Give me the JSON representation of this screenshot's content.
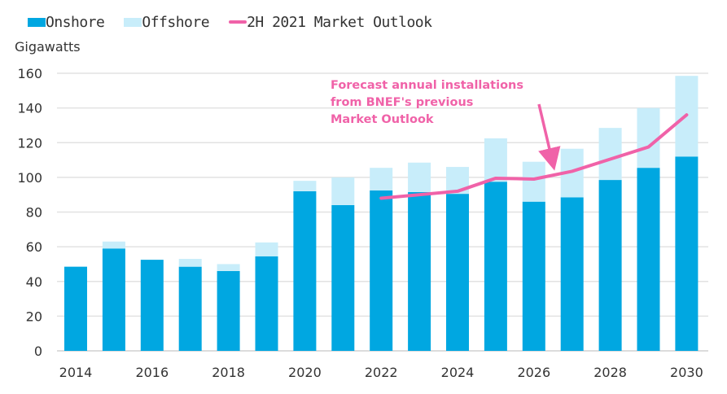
{
  "chart_data": {
    "type": "bar",
    "stacked": true,
    "title": "",
    "ylabel": "Gigawatts",
    "xlabel": "",
    "ylim": [
      0,
      160
    ],
    "yticks": [
      "0",
      "20",
      "40",
      "60",
      "80",
      "100",
      "120",
      "140",
      "160"
    ],
    "ytick_values": [
      0,
      20,
      40,
      60,
      80,
      100,
      120,
      140,
      160
    ],
    "grid": true,
    "legend_position": "top-left",
    "categories": [
      "2014",
      "2015",
      "2016",
      "2017",
      "2018",
      "2019",
      "2020",
      "2021",
      "2022",
      "2023",
      "2024",
      "2025",
      "2026",
      "2027",
      "2028",
      "2029",
      "2030"
    ],
    "xtick_labels": [
      "2014",
      "",
      "2016",
      "",
      "2018",
      "",
      "2020",
      "",
      "2022",
      "",
      "2024",
      "",
      "2026",
      "",
      "2028",
      "",
      "2030"
    ],
    "series": [
      {
        "name": "Onshore",
        "type": "bar",
        "color": "#00A7E1",
        "values": [
          48.5,
          59,
          52.5,
          48.5,
          46,
          54.5,
          92,
          84,
          92.5,
          91.5,
          90.5,
          97.5,
          86,
          88.5,
          98.5,
          105.5,
          112
        ]
      },
      {
        "name": "Offshore",
        "type": "bar",
        "color": "#C8EDFA",
        "values": [
          0,
          4,
          0,
          4.5,
          4,
          8,
          6,
          16,
          13,
          17,
          15.5,
          25,
          23,
          28,
          30,
          34.5,
          46.5
        ]
      },
      {
        "name": "2H 2021 Market Outlook",
        "type": "line",
        "color": "#F062A8",
        "x": [
          "2022",
          "2023",
          "2024",
          "2025",
          "2026",
          "2027",
          "2028",
          "2029",
          "2030"
        ],
        "values": [
          88,
          90,
          92,
          99.5,
          99,
          103.5,
          110.5,
          117.5,
          136
        ]
      }
    ],
    "annotations": [
      {
        "lines": [
          "Forecast annual installations",
          "from BNEF's previous",
          "Market Outlook"
        ],
        "color": "#F062A8",
        "arrow_to": {
          "x": "2026.5",
          "y": 105
        }
      }
    ]
  },
  "legend": [
    {
      "label": "Onshore",
      "kind": "box",
      "color": "#00A7E1"
    },
    {
      "label": "Offshore",
      "kind": "box",
      "color": "#C8EDFA"
    },
    {
      "label": "2H 2021 Market Outlook",
      "kind": "line",
      "color": "#F062A8"
    }
  ]
}
